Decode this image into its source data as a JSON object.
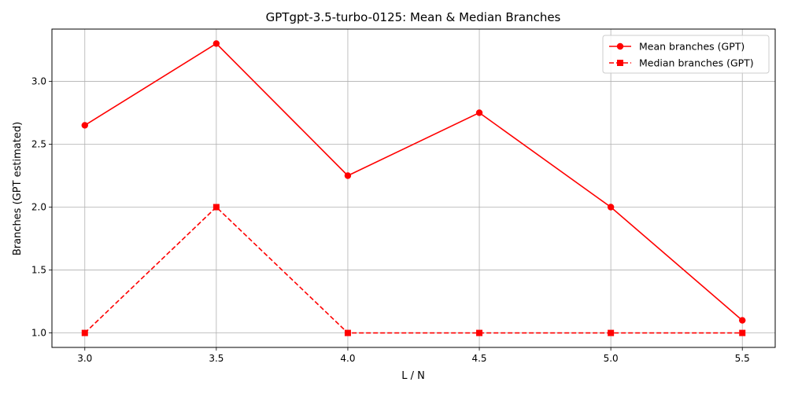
{
  "chart_data": {
    "type": "line",
    "title": "GPTgpt-3.5-turbo-0125: Mean & Median Branches",
    "xlabel": "L / N",
    "ylabel": "Branches (GPT estimated)",
    "x": [
      3.0,
      3.5,
      4.0,
      4.5,
      5.0,
      5.5
    ],
    "x_tick_labels": [
      "3.0",
      "3.5",
      "4.0",
      "4.5",
      "5.0",
      "5.5"
    ],
    "y_ticks": [
      1.0,
      1.5,
      2.0,
      2.5,
      3.0
    ],
    "y_tick_labels": [
      "1.0",
      "1.5",
      "2.0",
      "2.5",
      "3.0"
    ],
    "xlim": [
      2.875,
      5.625
    ],
    "ylim": [
      0.885,
      3.415
    ],
    "grid": true,
    "legend_position": "top-right",
    "series": [
      {
        "name": "Mean branches (GPT)",
        "values": [
          2.65,
          3.3,
          2.25,
          2.75,
          2.0,
          1.1
        ],
        "color": "#ff0000",
        "line_style": "solid",
        "marker": "circle"
      },
      {
        "name": "Median branches (GPT)",
        "values": [
          1.0,
          2.0,
          1.0,
          1.0,
          1.0,
          1.0
        ],
        "color": "#ff0000",
        "line_style": "dashed",
        "marker": "square"
      }
    ]
  }
}
